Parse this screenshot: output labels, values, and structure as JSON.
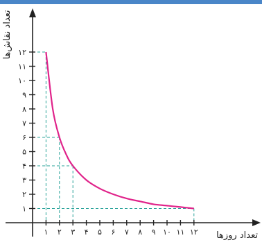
{
  "colors": {
    "top_bar": "#4a86c8",
    "axis": "#222222",
    "curve": "#e0238a",
    "guide": "#2aa39a"
  },
  "chart_data": {
    "type": "line",
    "title": "",
    "xlabel": "تعداد روزها",
    "ylabel": "تعداد نقاش‌ها",
    "x_ticks": [
      1,
      2,
      3,
      4,
      5,
      6,
      7,
      8,
      9,
      10,
      11,
      12
    ],
    "y_ticks": [
      1,
      2,
      3,
      4,
      5,
      6,
      7,
      8,
      9,
      10,
      11,
      12
    ],
    "x_tick_labels": [
      "۱",
      "۲",
      "۳",
      "۴",
      "۵",
      "۶",
      "۷",
      "۸",
      "۹",
      "۱۰",
      "۱۱",
      "۱۲"
    ],
    "y_tick_labels": [
      "۱",
      "۲",
      "۳",
      "۴",
      "۵",
      "۶",
      "۷",
      "۸",
      "۹",
      "۱۰",
      "۱۱",
      "۱۲"
    ],
    "xlim": [
      0,
      12.5
    ],
    "ylim": [
      0,
      13
    ],
    "grid": false,
    "series": [
      {
        "x": [
          1,
          1.5,
          2,
          2.5,
          3,
          4,
          5,
          6,
          7,
          8,
          9,
          10,
          11,
          12
        ],
        "y": [
          12,
          8,
          6,
          4.8,
          4,
          3,
          2.4,
          2,
          1.7,
          1.5,
          1.3,
          1.2,
          1.1,
          1
        ]
      }
    ],
    "guide_points": [
      {
        "x": 1,
        "y": 12
      },
      {
        "x": 2,
        "y": 6
      },
      {
        "x": 3,
        "y": 4
      },
      {
        "x": 12,
        "y": 1
      }
    ]
  }
}
